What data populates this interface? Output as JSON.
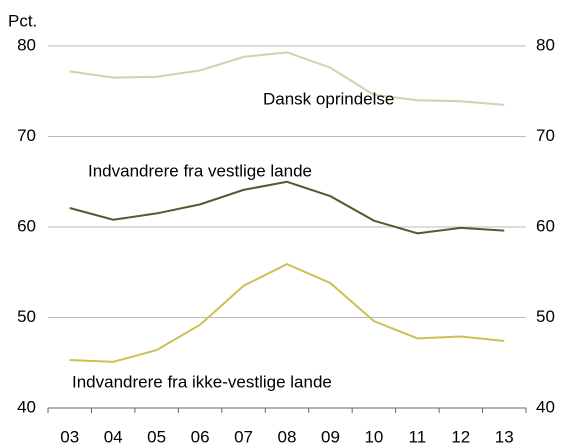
{
  "chart_data": {
    "type": "line",
    "y_unit_label": "Pct.",
    "categories": [
      "03",
      "04",
      "05",
      "06",
      "07",
      "08",
      "09",
      "10",
      "11",
      "12",
      "13"
    ],
    "series": [
      {
        "name": "Dansk oprindelse",
        "color": "#d6cfae",
        "values": [
          77.2,
          76.5,
          76.6,
          77.3,
          78.8,
          79.3,
          77.6,
          74.6,
          74.0,
          73.9,
          73.5
        ]
      },
      {
        "name": "Indvandrere fra vestlige lande",
        "color": "#5e5530",
        "values": [
          62.1,
          60.8,
          61.5,
          62.5,
          64.1,
          65.0,
          63.4,
          60.7,
          59.3,
          59.9,
          59.6
        ]
      },
      {
        "name": "Indvandrere fra ikke-vestlige lande",
        "color": "#c9c152",
        "values": [
          45.3,
          45.1,
          46.4,
          49.2,
          53.5,
          55.9,
          53.8,
          49.6,
          47.7,
          47.9,
          47.4
        ]
      }
    ],
    "ylim": [
      40,
      80
    ],
    "yticks": [
      40,
      50,
      60,
      70,
      80
    ],
    "grid": true
  }
}
